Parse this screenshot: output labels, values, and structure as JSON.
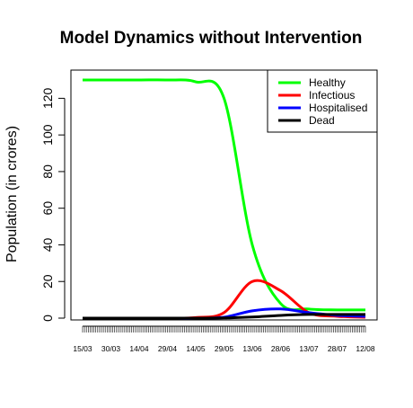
{
  "chart_data": {
    "type": "line",
    "title": "Model Dynamics without Intervention",
    "xlabel": "",
    "ylabel": "Population (in crores)",
    "ylim": [
      0,
      130
    ],
    "y_ticks": [
      0,
      20,
      40,
      60,
      80,
      100,
      120
    ],
    "x_tick_labels": [
      "15/03",
      "30/03",
      "14/04",
      "29/04",
      "14/05",
      "29/05",
      "13/06",
      "28/06",
      "13/07",
      "28/07",
      "12/08"
    ],
    "x": [
      "15/03",
      "30/03",
      "14/04",
      "29/04",
      "14/05",
      "29/05",
      "13/06",
      "28/06",
      "13/07",
      "28/07",
      "12/08"
    ],
    "legend_position": "top-right",
    "series": [
      {
        "name": "Healthy",
        "color": "#00ff00",
        "values": [
          130,
          130,
          130,
          130,
          129,
          120,
          40,
          8,
          5,
          4.5,
          4.5
        ]
      },
      {
        "name": "Infectious",
        "color": "#ff0000",
        "values": [
          0,
          0,
          0,
          0,
          0.3,
          3,
          20,
          15,
          3,
          1,
          0.5
        ]
      },
      {
        "name": "Hospitalised",
        "color": "#0000ff",
        "values": [
          0,
          0,
          0,
          0,
          0,
          0.5,
          4,
          5,
          3,
          1.5,
          1
        ]
      },
      {
        "name": "Dead",
        "color": "#000000",
        "values": [
          0,
          0,
          0,
          0,
          0,
          0.1,
          0.6,
          1.5,
          2,
          2,
          2
        ]
      }
    ]
  }
}
